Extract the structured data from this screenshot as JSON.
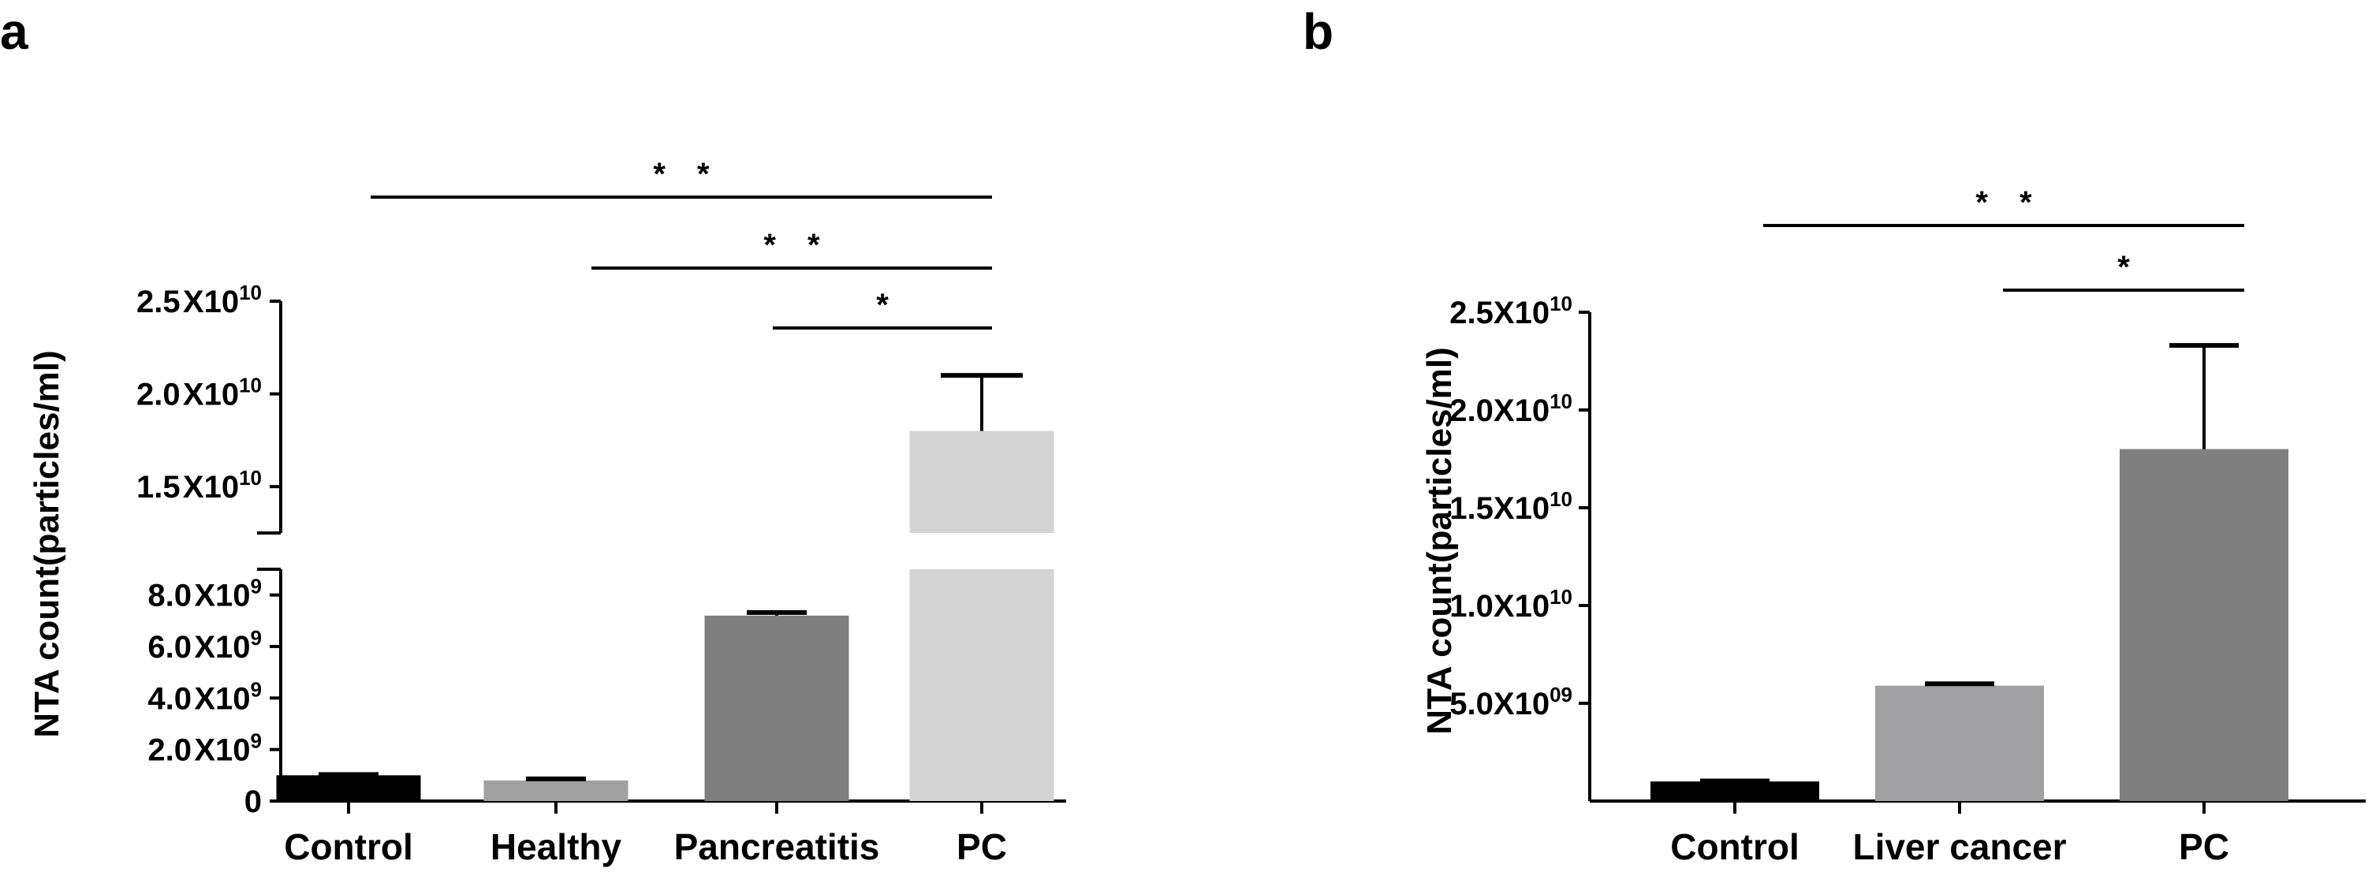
{
  "chart_data": [
    {
      "panel": "a",
      "type": "bar",
      "broken_axis": true,
      "ylabel": "NTA count(particles/ml)",
      "categories": [
        "Control",
        "Healthy",
        "Pancreatitis",
        "PC"
      ],
      "values": [
        1000000000.0,
        800000000.0,
        7200000000.0,
        18000000000.0
      ],
      "errors": [
        30000000.0,
        60000000.0,
        120000000.0,
        3000000000.0
      ],
      "colors": [
        "#000000",
        "#a0a0a0",
        "#7f7f7f",
        "#d4d4d4"
      ],
      "lower_segment": {
        "ylim": [
          0,
          9000000000.0
        ],
        "ticks": [
          {
            "value": 0,
            "label": "0",
            "exp": ""
          },
          {
            "value": 2000000000.0,
            "label": "2.0 X10",
            "exp": "9"
          },
          {
            "value": 4000000000.0,
            "label": "4.0 X10",
            "exp": "9"
          },
          {
            "value": 6000000000.0,
            "label": "6.0 X10",
            "exp": "9"
          },
          {
            "value": 8000000000.0,
            "label": "8.0 X10",
            "exp": "9"
          }
        ]
      },
      "upper_segment": {
        "ylim": [
          12500000000.0,
          25000000000.0
        ],
        "ticks": [
          {
            "value": 15000000000.0,
            "label": "1.5 X10",
            "exp": "10"
          },
          {
            "value": 20000000000.0,
            "label": "2.0 X10",
            "exp": "10"
          },
          {
            "value": 25000000000.0,
            "label": "2.5 X10",
            "exp": "10"
          }
        ]
      },
      "significance": [
        {
          "from": 0,
          "to": 3,
          "label": "* *"
        },
        {
          "from": 1,
          "to": 3,
          "label": "* *"
        },
        {
          "from": 2,
          "to": 3,
          "label": "*"
        }
      ]
    },
    {
      "panel": "b",
      "type": "bar",
      "broken_axis": false,
      "ylabel": "NTA count(particles/ml)",
      "categories": [
        "Control",
        "Liver cancer",
        "PC"
      ],
      "values": [
        1000000000.0,
        5900000000.0,
        18000000000.0
      ],
      "errors": [
        30000000.0,
        100000000.0,
        5300000000.0
      ],
      "colors": [
        "#000000",
        "#a0a0a2",
        "#7f7f7f"
      ],
      "ylim": [
        0,
        25000000000.0
      ],
      "ticks": [
        {
          "value": 5000000000.0,
          "label": "5.0X10",
          "exp": "09"
        },
        {
          "value": 10000000000.0,
          "label": "1.0X10",
          "exp": "10"
        },
        {
          "value": 15000000000.0,
          "label": "1.5X10",
          "exp": "10"
        },
        {
          "value": 20000000000.0,
          "label": "2.0X10",
          "exp": "10"
        },
        {
          "value": 25000000000.0,
          "label": "2.5X10",
          "exp": "10"
        }
      ],
      "significance": [
        {
          "from": 0,
          "to": 2,
          "label": "* *"
        },
        {
          "from": 1,
          "to": 2,
          "label": "*"
        }
      ]
    }
  ]
}
